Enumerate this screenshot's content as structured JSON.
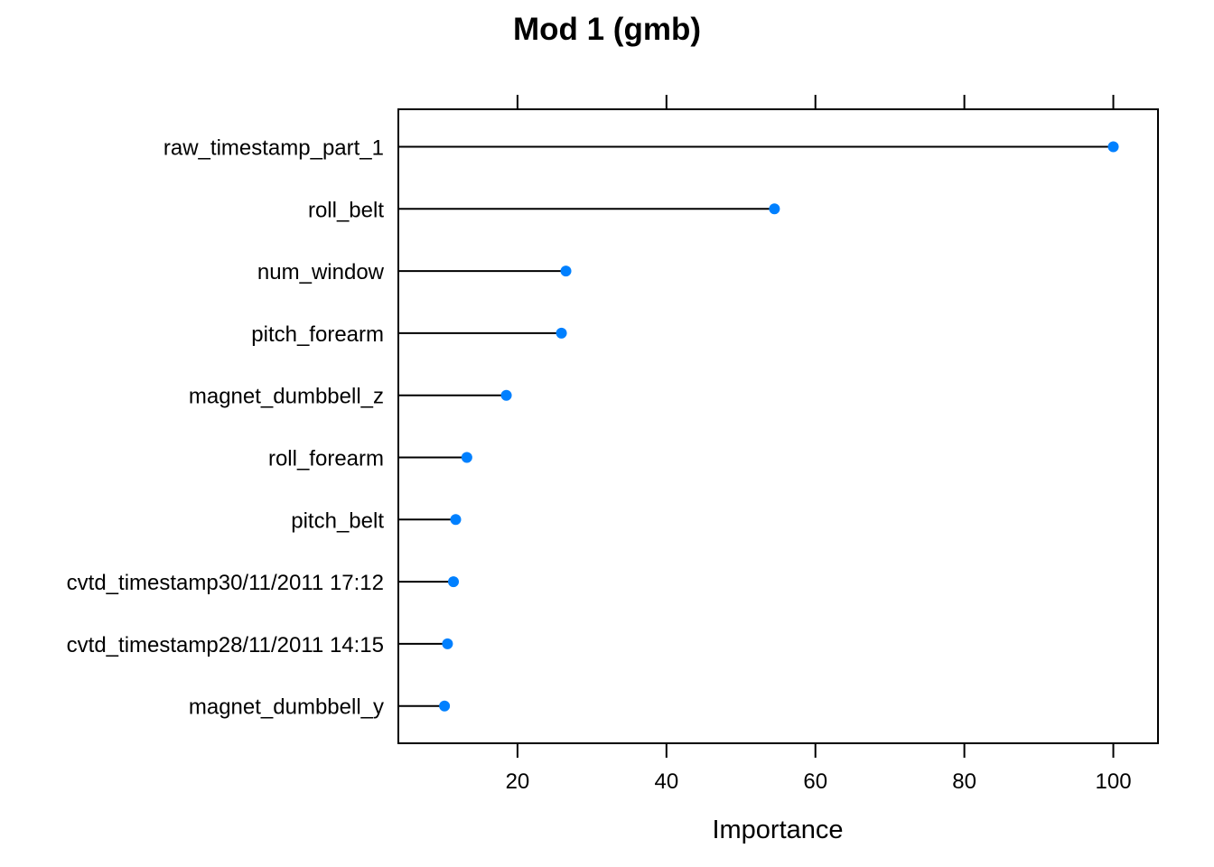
{
  "chart_data": {
    "type": "scatter",
    "subtype": "dot-plot-with-stems",
    "title": "Mod 1 (gmb)",
    "xlabel": "Importance",
    "ylabel": "",
    "xlim": [
      4,
      106
    ],
    "xticks": [
      20,
      40,
      60,
      80,
      100
    ],
    "tick_labels": [
      "20",
      "40",
      "60",
      "80",
      "100"
    ],
    "categories": [
      "raw_timestamp_part_1",
      "roll_belt",
      "num_window",
      "pitch_forearm",
      "magnet_dumbbell_z",
      "roll_forearm",
      "pitch_belt",
      "cvtd_timestamp30/11/2011 17:12",
      "cvtd_timestamp28/11/2011 14:15",
      "magnet_dumbbell_y"
    ],
    "values": [
      100,
      54.5,
      26.5,
      25.9,
      18.5,
      13.2,
      11.7,
      11.4,
      10.6,
      10.2
    ],
    "grid": false,
    "legend": "none",
    "point_color": "#0080FF",
    "line_color": "#000000"
  }
}
